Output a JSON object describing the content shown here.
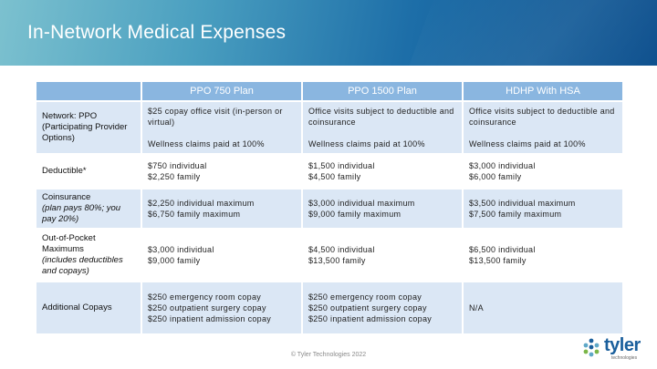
{
  "slide": {
    "title": "In-Network Medical Expenses",
    "footer": "© Tyler Technologies 2022",
    "logo": {
      "word": "tyler",
      "sub": "technologies",
      "colors": {
        "blue": "#1a5f9c",
        "teal": "#5fa8c7",
        "green": "#7ab648"
      }
    }
  },
  "table": {
    "headers": [
      "",
      "PPO 750 Plan",
      "PPO 1500 Plan",
      "HDHP With HSA"
    ],
    "rows": [
      {
        "label": "Network: PPO (Participating Provider Options)",
        "sub": "",
        "cells": [
          [
            "$25 copay office visit (in-person or virtual)",
            "Wellness claims paid at 100%"
          ],
          [
            "Office visits subject to deductible and coinsurance",
            "Wellness claims paid at 100%"
          ],
          [
            "Office visits subject to deductible and coinsurance",
            "Wellness claims paid at 100%"
          ]
        ]
      },
      {
        "label": "Deductible*",
        "sub": "",
        "cells": [
          [
            "$750 individual",
            "$2,250 family"
          ],
          [
            "$1,500 individual",
            "$4,500 family"
          ],
          [
            "$3,000 individual",
            "$6,000 family"
          ]
        ]
      },
      {
        "label": "Coinsurance",
        "sub": "(plan pays 80%; you pay 20%)",
        "cells": [
          [
            "$2,250 individual maximum",
            "$6,750 family maximum"
          ],
          [
            "$3,000 individual maximum",
            "$9,000 family maximum"
          ],
          [
            "$3,500 individual maximum",
            "$7,500 family maximum"
          ]
        ]
      },
      {
        "label": "Out-of-Pocket Maximums",
        "sub": "(includes deductibles and copays)",
        "cells": [
          [
            "$3,000 individual",
            "$9,000 family"
          ],
          [
            "$4,500 individual",
            "$13,500 family"
          ],
          [
            "$6,500 individual",
            "$13,500 family"
          ]
        ]
      },
      {
        "label": "Additional Copays",
        "sub": "",
        "cells": [
          [
            "$250 emergency room copay",
            "$250 outpatient surgery copay",
            "$250 inpatient admission copay"
          ],
          [
            "$250 emergency room copay",
            "$250 outpatient surgery copay",
            "$250 inpatient admission copay"
          ],
          [
            "N/A"
          ]
        ]
      }
    ]
  }
}
